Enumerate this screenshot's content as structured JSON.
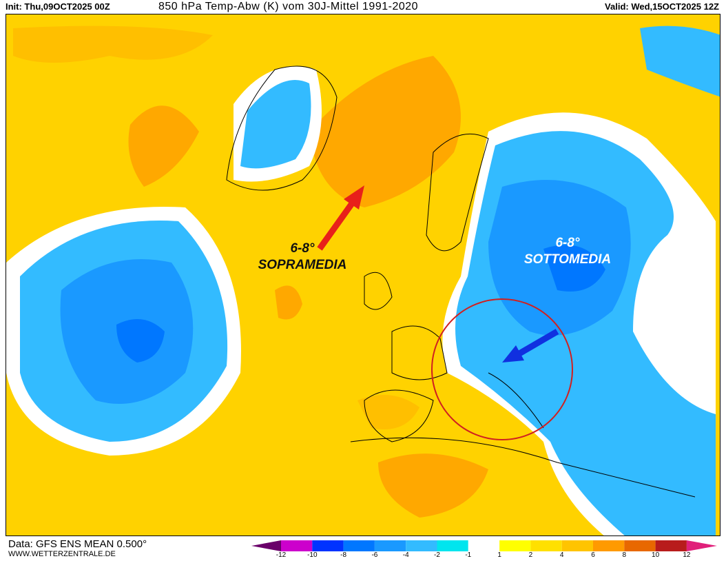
{
  "header": {
    "init": "Init: Thu,09OCT2025 00Z",
    "title": "850 hPa Temp-Abw (K) vom 30J-Mittel 1991-2020",
    "valid": "Valid: Wed,15OCT2025 12Z"
  },
  "annotations": {
    "warm": {
      "value": "6-8°",
      "label": "SOPRAMEDIA",
      "arrow_color": "#e8201a"
    },
    "cold": {
      "value": "6-8°",
      "label": "SOTTOMEDIA",
      "arrow_color": "#1030e0"
    },
    "circle_color": "#d02020"
  },
  "footer": {
    "data": "Data: GFS ENS MEAN 0.500°",
    "site": "WWW.WETTERZENTRALE.DE"
  },
  "legend": {
    "ticks": [
      "-12",
      "-10",
      "-8",
      "-6",
      "-4",
      "-2",
      "-1",
      "1",
      "2",
      "4",
      "6",
      "8",
      "10",
      "12"
    ],
    "colors": [
      "#cc00cc",
      "#0033ff",
      "#0077ff",
      "#1a99ff",
      "#33bbff",
      "#00e5ee",
      "#ffffff",
      "#ffff00",
      "#ffe000",
      "#ffc400",
      "#ff9a00",
      "#e86800",
      "#b81c1c"
    ],
    "low_color": "#6a006a",
    "high_color": "#e0207a"
  }
}
